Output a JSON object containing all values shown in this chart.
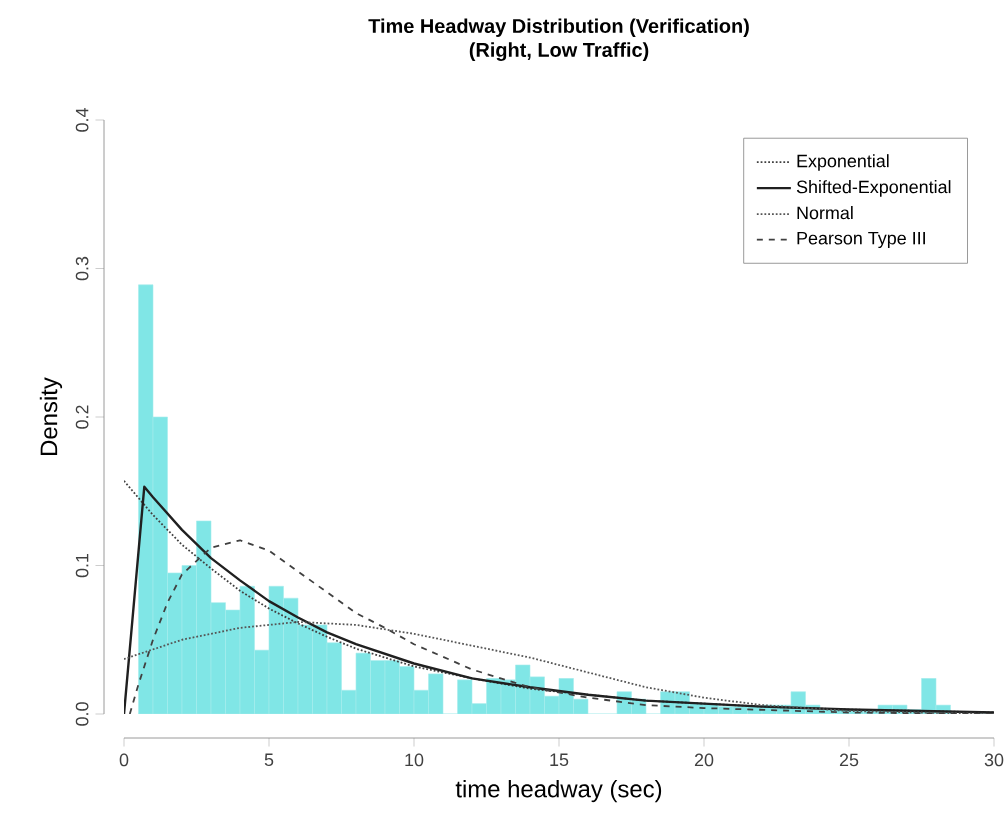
{
  "chart_data": {
    "type": "histogram",
    "title": "Time Headway Distribution (Verification)",
    "subtitle": "(Right, Low Traffic)",
    "xlabel": "time headway (sec)",
    "ylabel": "Density",
    "color": "#80e6e6",
    "bins": [
      0.5,
      1,
      1.5,
      2,
      2.5,
      3,
      3.5,
      4,
      4.5,
      5,
      5.5,
      6,
      6.5,
      7,
      7.5,
      8,
      8.5,
      9,
      9.5,
      10,
      10.5,
      11,
      11.5,
      12,
      12.5,
      13,
      13.5,
      14,
      14.5,
      15,
      15.5,
      16,
      16.5,
      17,
      17.5,
      18,
      18.5,
      19,
      19.5,
      20,
      20.5,
      21,
      21.5,
      22,
      22.5,
      23,
      23.5,
      24,
      24.5,
      25,
      25.5,
      26,
      26.5,
      27,
      27.5,
      28,
      28.5,
      29,
      29.5,
      30
    ],
    "values": [
      0.289,
      0.2,
      0.095,
      0.1,
      0.13,
      0.075,
      0.07,
      0.086,
      0.043,
      0.086,
      0.078,
      0.06,
      0.06,
      0.048,
      0.016,
      0.041,
      0.036,
      0.036,
      0.032,
      0.016,
      0.027,
      0,
      0.023,
      0.007,
      0.024,
      0.023,
      0.033,
      0.025,
      0.012,
      0.024,
      0.01,
      0,
      0,
      0.015,
      0.01,
      0,
      0.015,
      0.015,
      0.007,
      0.007,
      0.005,
      0.005,
      0.005,
      0.006,
      0.006,
      0.015,
      0.006,
      0.003,
      0.003,
      0.002,
      0.002,
      0.006,
      0.006,
      0.003,
      0.024,
      0.006,
      null,
      null,
      0
    ],
    "series": [
      {
        "name": "Exponential",
        "type": "line",
        "color": "#404040",
        "line_style": "dotted",
        "x": [
          0,
          1,
          2,
          3,
          4,
          5,
          6,
          7,
          8,
          10,
          12,
          14,
          16,
          18,
          20,
          22,
          25,
          30
        ],
        "values": [
          0.157,
          0.134,
          0.114,
          0.098,
          0.083,
          0.071,
          0.061,
          0.052,
          0.044,
          0.032,
          0.024,
          0.017,
          0.013,
          0.009,
          0.007,
          0.005,
          0.003,
          0.001
        ]
      },
      {
        "name": "Shifted-Exponential",
        "type": "line",
        "color": "#202020",
        "line_style": "solid",
        "x": [
          0,
          0.7,
          1,
          2,
          3,
          4,
          5,
          6,
          7,
          8,
          10,
          12,
          14,
          16,
          18,
          20,
          22,
          25,
          30
        ],
        "values": [
          0,
          0.153,
          0.146,
          0.124,
          0.105,
          0.09,
          0.076,
          0.065,
          0.055,
          0.047,
          0.034,
          0.024,
          0.018,
          0.013,
          0.009,
          0.007,
          0.005,
          0.003,
          0.001
        ]
      },
      {
        "name": "Normal",
        "type": "line",
        "color": "#555555",
        "line_style": "dotted",
        "x": [
          0,
          2,
          4,
          6,
          8,
          10,
          12,
          14,
          16,
          18,
          20,
          22,
          25,
          30
        ],
        "values": [
          0.037,
          0.05,
          0.058,
          0.062,
          0.06,
          0.054,
          0.046,
          0.038,
          0.028,
          0.018,
          0.011,
          0.006,
          0.002,
          0
        ]
      },
      {
        "name": "Pearson Type III",
        "type": "line",
        "color": "#404040",
        "line_style": "dashed",
        "x": [
          0.2,
          0.5,
          1,
          1.5,
          2,
          3,
          4,
          5,
          6,
          7,
          8,
          9,
          10,
          12,
          14,
          16,
          18,
          20,
          25,
          30
        ],
        "values": [
          0,
          0.02,
          0.05,
          0.075,
          0.094,
          0.112,
          0.117,
          0.11,
          0.096,
          0.082,
          0.068,
          0.058,
          0.047,
          0.03,
          0.018,
          0.011,
          0.006,
          0.004,
          0.001,
          0
        ]
      }
    ],
    "xlim": [
      0,
      30
    ],
    "ylim": [
      0,
      0.4
    ],
    "xticks": [
      0,
      5,
      10,
      15,
      20,
      25,
      30
    ],
    "yticks": [
      {
        "value": 0,
        "label": "0.0"
      },
      0.1,
      0.2,
      0.3,
      0.4
    ],
    "legend": "top right"
  }
}
